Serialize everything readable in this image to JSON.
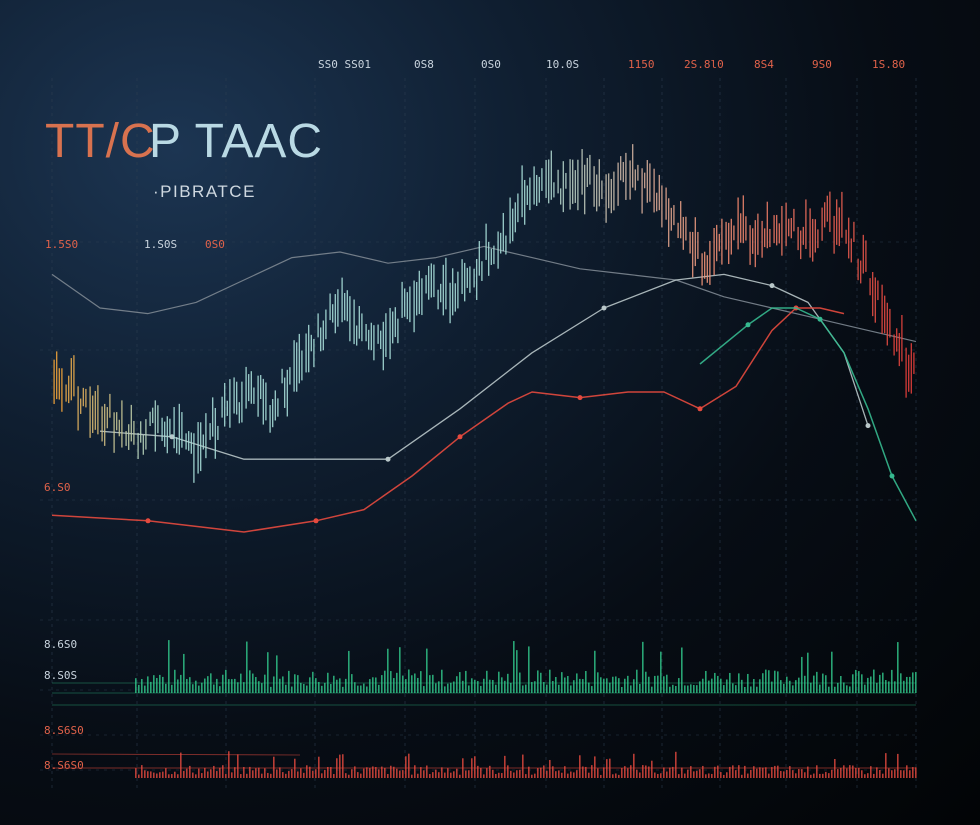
{
  "chart_data": {
    "type": "line",
    "title": {
      "part1": "TT/C",
      "part2": "P TAAC"
    },
    "subtitle": "·PIBRATCE",
    "top_ticks": [
      "SS0 SS01",
      "0S8",
      "0S0",
      "10.0S",
      "1150",
      "2S.8l0",
      "8S4",
      "9S0",
      "1S.80"
    ],
    "mid_labels": [
      "1.5S0",
      "1.S0S",
      "0S0"
    ],
    "left_labels": [
      "6.S0",
      "8.6S0",
      "8.S0S",
      "8.S6S0",
      "8.S6S0"
    ],
    "grid": true,
    "colors": {
      "price_start": "#f1a43a",
      "price_mid": "#a7ddd8",
      "price_peak": "#f09478",
      "price_end": "#e33b37",
      "volume": "#2fbf86",
      "indicator_red": "#e54a3e",
      "indicator_green": "#36b98f",
      "indicator_gray": "#7d8791"
    },
    "candles": [
      {
        "x": 1,
        "y": 0.57
      },
      {
        "x": 2,
        "y": 0.56
      },
      {
        "x": 3,
        "y": 0.53
      },
      {
        "x": 4,
        "y": 0.52
      },
      {
        "x": 5,
        "y": 0.51
      },
      {
        "x": 6,
        "y": 0.49
      },
      {
        "x": 7,
        "y": 0.48
      },
      {
        "x": 8,
        "y": 0.47
      },
      {
        "x": 9,
        "y": 0.49
      },
      {
        "x": 10,
        "y": 0.48
      },
      {
        "x": 11,
        "y": 0.47
      },
      {
        "x": 12,
        "y": 0.45
      },
      {
        "x": 13,
        "y": 0.46
      },
      {
        "x": 14,
        "y": 0.49
      },
      {
        "x": 15,
        "y": 0.51
      },
      {
        "x": 16,
        "y": 0.53
      },
      {
        "x": 17,
        "y": 0.55
      },
      {
        "x": 18,
        "y": 0.54
      },
      {
        "x": 19,
        "y": 0.52
      },
      {
        "x": 20,
        "y": 0.56
      },
      {
        "x": 21,
        "y": 0.59
      },
      {
        "x": 22,
        "y": 0.62
      },
      {
        "x": 23,
        "y": 0.66
      },
      {
        "x": 24,
        "y": 0.69
      },
      {
        "x": 25,
        "y": 0.7
      },
      {
        "x": 26,
        "y": 0.67
      },
      {
        "x": 27,
        "y": 0.65
      },
      {
        "x": 28,
        "y": 0.64
      },
      {
        "x": 29,
        "y": 0.66
      },
      {
        "x": 30,
        "y": 0.7
      },
      {
        "x": 31,
        "y": 0.72
      },
      {
        "x": 32,
        "y": 0.74
      },
      {
        "x": 33,
        "y": 0.73
      },
      {
        "x": 34,
        "y": 0.72
      },
      {
        "x": 35,
        "y": 0.74
      },
      {
        "x": 36,
        "y": 0.77
      },
      {
        "x": 37,
        "y": 0.8
      },
      {
        "x": 38,
        "y": 0.82
      },
      {
        "x": 39,
        "y": 0.86
      },
      {
        "x": 40,
        "y": 0.89
      },
      {
        "x": 41,
        "y": 0.91
      },
      {
        "x": 42,
        "y": 0.92
      },
      {
        "x": 43,
        "y": 0.91
      },
      {
        "x": 44,
        "y": 0.92
      },
      {
        "x": 45,
        "y": 0.93
      },
      {
        "x": 46,
        "y": 0.92
      },
      {
        "x": 47,
        "y": 0.91
      },
      {
        "x": 48,
        "y": 0.93
      },
      {
        "x": 49,
        "y": 0.94
      },
      {
        "x": 50,
        "y": 0.92
      },
      {
        "x": 51,
        "y": 0.9
      },
      {
        "x": 52,
        "y": 0.87
      },
      {
        "x": 53,
        "y": 0.84
      },
      {
        "x": 54,
        "y": 0.8
      },
      {
        "x": 55,
        "y": 0.78
      },
      {
        "x": 56,
        "y": 0.8
      },
      {
        "x": 57,
        "y": 0.83
      },
      {
        "x": 58,
        "y": 0.84
      },
      {
        "x": 59,
        "y": 0.83
      },
      {
        "x": 60,
        "y": 0.84
      },
      {
        "x": 61,
        "y": 0.85
      },
      {
        "x": 62,
        "y": 0.84
      },
      {
        "x": 63,
        "y": 0.83
      },
      {
        "x": 64,
        "y": 0.84
      },
      {
        "x": 65,
        "y": 0.86
      },
      {
        "x": 66,
        "y": 0.85
      },
      {
        "x": 67,
        "y": 0.82
      },
      {
        "x": 68,
        "y": 0.78
      },
      {
        "x": 69,
        "y": 0.73
      },
      {
        "x": 70,
        "y": 0.68
      },
      {
        "x": 71,
        "y": 0.64
      },
      {
        "x": 72,
        "y": 0.6
      }
    ],
    "indicator_red": [
      {
        "x": 0,
        "y": 0.33
      },
      {
        "x": 8,
        "y": 0.32
      },
      {
        "x": 12,
        "y": 0.31
      },
      {
        "x": 16,
        "y": 0.3
      },
      {
        "x": 22,
        "y": 0.32
      },
      {
        "x": 26,
        "y": 0.34
      },
      {
        "x": 30,
        "y": 0.4
      },
      {
        "x": 34,
        "y": 0.47
      },
      {
        "x": 38,
        "y": 0.53
      },
      {
        "x": 40,
        "y": 0.55
      },
      {
        "x": 44,
        "y": 0.54
      },
      {
        "x": 48,
        "y": 0.55
      },
      {
        "x": 51,
        "y": 0.55
      },
      {
        "x": 54,
        "y": 0.52
      },
      {
        "x": 57,
        "y": 0.56
      },
      {
        "x": 60,
        "y": 0.66
      },
      {
        "x": 62,
        "y": 0.7
      },
      {
        "x": 64,
        "y": 0.7
      },
      {
        "x": 66,
        "y": 0.69
      }
    ],
    "indicator_gray": [
      {
        "x": 0,
        "y": 0.76
      },
      {
        "x": 4,
        "y": 0.7
      },
      {
        "x": 8,
        "y": 0.69
      },
      {
        "x": 12,
        "y": 0.71
      },
      {
        "x": 16,
        "y": 0.75
      },
      {
        "x": 20,
        "y": 0.79
      },
      {
        "x": 24,
        "y": 0.8
      },
      {
        "x": 28,
        "y": 0.78
      },
      {
        "x": 32,
        "y": 0.79
      },
      {
        "x": 36,
        "y": 0.81
      },
      {
        "x": 40,
        "y": 0.79
      },
      {
        "x": 44,
        "y": 0.77
      },
      {
        "x": 48,
        "y": 0.76
      },
      {
        "x": 52,
        "y": 0.75
      },
      {
        "x": 56,
        "y": 0.72
      },
      {
        "x": 60,
        "y": 0.7
      },
      {
        "x": 64,
        "y": 0.68
      },
      {
        "x": 68,
        "y": 0.66
      },
      {
        "x": 72,
        "y": 0.64
      }
    ],
    "indicator_green": [
      {
        "x": 54,
        "y": 0.6
      },
      {
        "x": 58,
        "y": 0.67
      },
      {
        "x": 60,
        "y": 0.7
      },
      {
        "x": 62,
        "y": 0.7
      },
      {
        "x": 64,
        "y": 0.68
      },
      {
        "x": 66,
        "y": 0.62
      },
      {
        "x": 68,
        "y": 0.52
      },
      {
        "x": 70,
        "y": 0.4
      },
      {
        "x": 72,
        "y": 0.32
      }
    ],
    "indicator_smooth": [
      {
        "x": 4,
        "y": 0.48
      },
      {
        "x": 10,
        "y": 0.47
      },
      {
        "x": 16,
        "y": 0.43
      },
      {
        "x": 22,
        "y": 0.43
      },
      {
        "x": 28,
        "y": 0.43
      },
      {
        "x": 34,
        "y": 0.52
      },
      {
        "x": 40,
        "y": 0.62
      },
      {
        "x": 46,
        "y": 0.7
      },
      {
        "x": 52,
        "y": 0.75
      },
      {
        "x": 56,
        "y": 0.76
      },
      {
        "x": 60,
        "y": 0.74
      },
      {
        "x": 63,
        "y": 0.71
      },
      {
        "x": 66,
        "y": 0.62
      },
      {
        "x": 68,
        "y": 0.49
      }
    ],
    "volume_scale": [
      0.2,
      0.35,
      0.6,
      1.0
    ]
  }
}
